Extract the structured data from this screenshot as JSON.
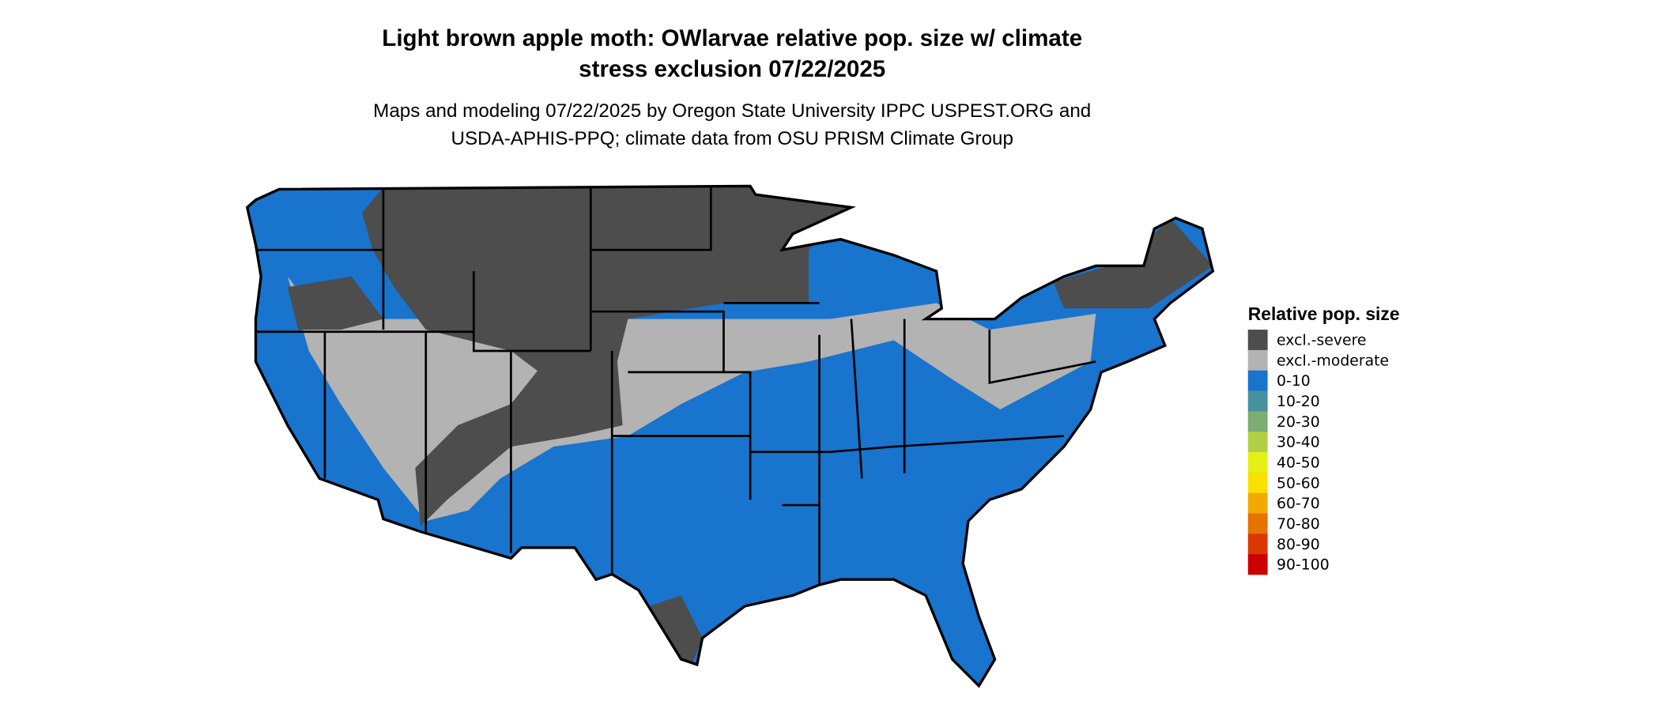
{
  "title_line1": "Light brown apple moth: OWlarvae relative pop. size w/ climate",
  "title_line2": "stress exclusion 07/22/2025",
  "subtitle_line1": "Maps and modeling 07/22/2025 by Oregon State University IPPC USPEST.ORG and",
  "subtitle_line2": "USDA-APHIS-PPQ; climate data from OSU PRISM Climate Group",
  "map": {
    "region": "Contiguous United States",
    "dominant_classes": [
      "excl.-severe",
      "excl.-moderate",
      "0-10"
    ]
  },
  "legend": {
    "title": "Relative pop. size",
    "items": [
      {
        "label": "excl.-severe",
        "color": "#4d4d4d"
      },
      {
        "label": "excl.-moderate",
        "color": "#b3b3b3"
      },
      {
        "label": "0-10",
        "color": "#1874cd"
      },
      {
        "label": "10-20",
        "color": "#48919e"
      },
      {
        "label": "20-30",
        "color": "#7bad74"
      },
      {
        "label": "30-40",
        "color": "#b2d045"
      },
      {
        "label": "40-50",
        "color": "#e6f014"
      },
      {
        "label": "50-60",
        "color": "#f9e000"
      },
      {
        "label": "60-70",
        "color": "#f2a900"
      },
      {
        "label": "70-80",
        "color": "#e67300"
      },
      {
        "label": "80-90",
        "color": "#da3800"
      },
      {
        "label": "90-100",
        "color": "#cc0000"
      }
    ]
  }
}
